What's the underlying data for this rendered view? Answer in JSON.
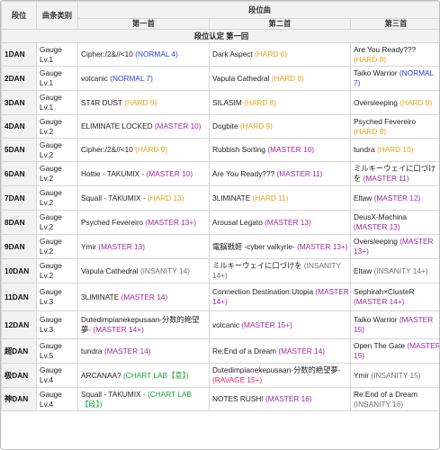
{
  "header": {
    "col_rank": "段位",
    "col_category": "曲条类别",
    "col_songs": "段位曲",
    "song1": "第一首",
    "song2": "第二首",
    "song3": "第三首"
  },
  "section_title": "段位认定 第一回",
  "difficulty_colors": {
    "normal": "#2f3fd6",
    "hard": "#e3a21a",
    "master": "#a027a3",
    "insanity": "#707070",
    "ravage": "#e0236e",
    "chart_lab": "#19a33a"
  },
  "rows": [
    {
      "dan": "1DAN",
      "gauge": "Gauge",
      "lv": "Lv.1",
      "s1": {
        "title": "Cipher:/2&//<10",
        "diff": "(NORMAL 4)"
      },
      "s2": {
        "title": "Dark Aspect",
        "diff": "(HARD 6)"
      },
      "s3": {
        "title": "Are You Ready???",
        "diff": "(HARD 8)"
      }
    },
    {
      "dan": "2DAN",
      "gauge": "Gauge",
      "lv": "Lv.1",
      "s1": {
        "title": "volcanic",
        "diff": "(NORMAL 7)"
      },
      "s2": {
        "title": "Vapula Cathedral",
        "diff": "(HARD 8)"
      },
      "s3": {
        "title": "Taiko Warrior",
        "diff": "(NORMAL 7)"
      }
    },
    {
      "dan": "3DAN",
      "gauge": "Gauge",
      "lv": "Lv.1",
      "s1": {
        "title": "ST4R DUST",
        "diff": "(HARD 9)"
      },
      "s2": {
        "title": "SILASIM",
        "diff": "(HARD 8)"
      },
      "s3": {
        "title": "Oversleeping",
        "diff": "(HARD 9)"
      }
    },
    {
      "dan": "4DAN",
      "gauge": "Gauge",
      "lv": "Lv.2",
      "s1": {
        "title": "ELIMINATE LOCKED",
        "diff": "(MASTER 10)"
      },
      "s2": {
        "title": "Dogbite",
        "diff": "(HARD 9)"
      },
      "s3": {
        "title": "Psyched Fevereiro",
        "diff": "(HARD 9)"
      }
    },
    {
      "dan": "5DAN",
      "gauge": "Gauge",
      "lv": "Lv.2",
      "s1": {
        "title": "Cipher:/2&//<10",
        "diff": "(HARD 9)"
      },
      "s2": {
        "title": "Rubbish Sorting",
        "diff": "(MASTER 10)"
      },
      "s3": {
        "title": "tundra",
        "diff": "(HARD 10)"
      }
    },
    {
      "dan": "6DAN",
      "gauge": "Gauge",
      "lv": "Lv.2",
      "s1": {
        "title": "Hottie - TAKUMIX -",
        "diff": "(MASTER 10)"
      },
      "s2": {
        "title": "Are You Ready???",
        "diff": "(MASTER 11)"
      },
      "s3": {
        "title": "ミルキーウェイに口づけを",
        "diff": "(MASTER 11)"
      }
    },
    {
      "dan": "7DAN",
      "gauge": "Gauge",
      "lv": "Lv.2",
      "s1": {
        "title": "Squall - TAKUMIX -",
        "diff": "(HARD 13)"
      },
      "s2": {
        "title": "3LIMINATE",
        "diff": "(HARD 11)"
      },
      "s3": {
        "title": "Eltaw",
        "diff": "(MASTER 12)"
      }
    },
    {
      "dan": "8DAN",
      "gauge": "Gauge",
      "lv": "Lv.2",
      "s1": {
        "title": "Psyched Fevereiro",
        "diff": "(MASTER 13+)"
      },
      "s2": {
        "title": "Arousal Legato",
        "diff": "(MASTER 13)"
      },
      "s3": {
        "title": "DeusX-Machina",
        "diff": "(MASTER 13)"
      }
    },
    {
      "dan": "9DAN",
      "gauge": "Gauge",
      "lv": "Lv.2",
      "s1": {
        "title": "Ymir",
        "diff": "(MASTER 13)"
      },
      "s2": {
        "title": "電脳戦姬 -cyber valkyrie-",
        "diff": "(MASTER 13+)"
      },
      "s3": {
        "title": "Oversleeping",
        "diff": "(MASTER 13+)"
      }
    },
    {
      "dan": "10DAN",
      "gauge": "Gauge",
      "lv": "Lv.2",
      "s1": {
        "title": "Vapula Cathedral",
        "diff": "(INSANITY 14)"
      },
      "s2": {
        "title": "ミルキーウェイに口づけを",
        "diff": "(INSANITY 14+)"
      },
      "s3": {
        "title": "Eltaw",
        "diff": "(INSANITY 14+)"
      }
    },
    {
      "dan": "11DAN",
      "gauge": "Gauge",
      "lv": "Lv.3",
      "s1": {
        "title": "3LIMINATE",
        "diff": "(MASTER 14)"
      },
      "s2": {
        "title": "Connection Destination:Utopia",
        "diff": "(MASTER 14+)"
      },
      "s3": {
        "title": "Sephirah×ClusteR",
        "diff": "(MASTER 14+)"
      }
    },
    {
      "dan": "12DAN",
      "gauge": "Gauge",
      "lv": "Lv.3",
      "s1": {
        "title": "Dutedimpianekepusaan-分数的絶望夢-",
        "diff": "(MASTER 14+)"
      },
      "s2": {
        "title": "volcanic",
        "diff": "(MASTER 15+)"
      },
      "s3": {
        "title": "Taiko Warrior",
        "diff": "(MASTER 15)"
      }
    },
    {
      "dan": "超DAN",
      "gauge": "Gauge",
      "lv": "Lv.5",
      "s1": {
        "title": "tundra",
        "diff": "(MASTER 14)"
      },
      "s2": {
        "title": "Re:End of a Dream",
        "diff": "(MASTER 14)"
      },
      "s3": {
        "title": "Open The Gate",
        "diff": "(MASTER 15)"
      }
    },
    {
      "dan": "极DAN",
      "gauge": "Gauge",
      "lv": "Lv.4",
      "s1": {
        "title": "ARCANAA?",
        "diff": "(CHART LAB【意】)"
      },
      "s2": {
        "title": "Dutedimpianekepusaan-分数的絶望夢-",
        "diff": "(RAVAGE 15+)"
      },
      "s3": {
        "title": "Ymir",
        "diff": "(INSANITY 15)"
      }
    },
    {
      "dan": "神DAN",
      "gauge": "Gauge",
      "lv": "Lv.4",
      "s1": {
        "title": "Squall - TAKUMIX -",
        "diff": "(CHART LAB【段】)"
      },
      "s2": {
        "title": "NOTES RUSH!",
        "diff": "(MASTER 16)"
      },
      "s3": {
        "title": "Re:End of a Dream",
        "diff": "(INSANITY 16)"
      }
    }
  ]
}
